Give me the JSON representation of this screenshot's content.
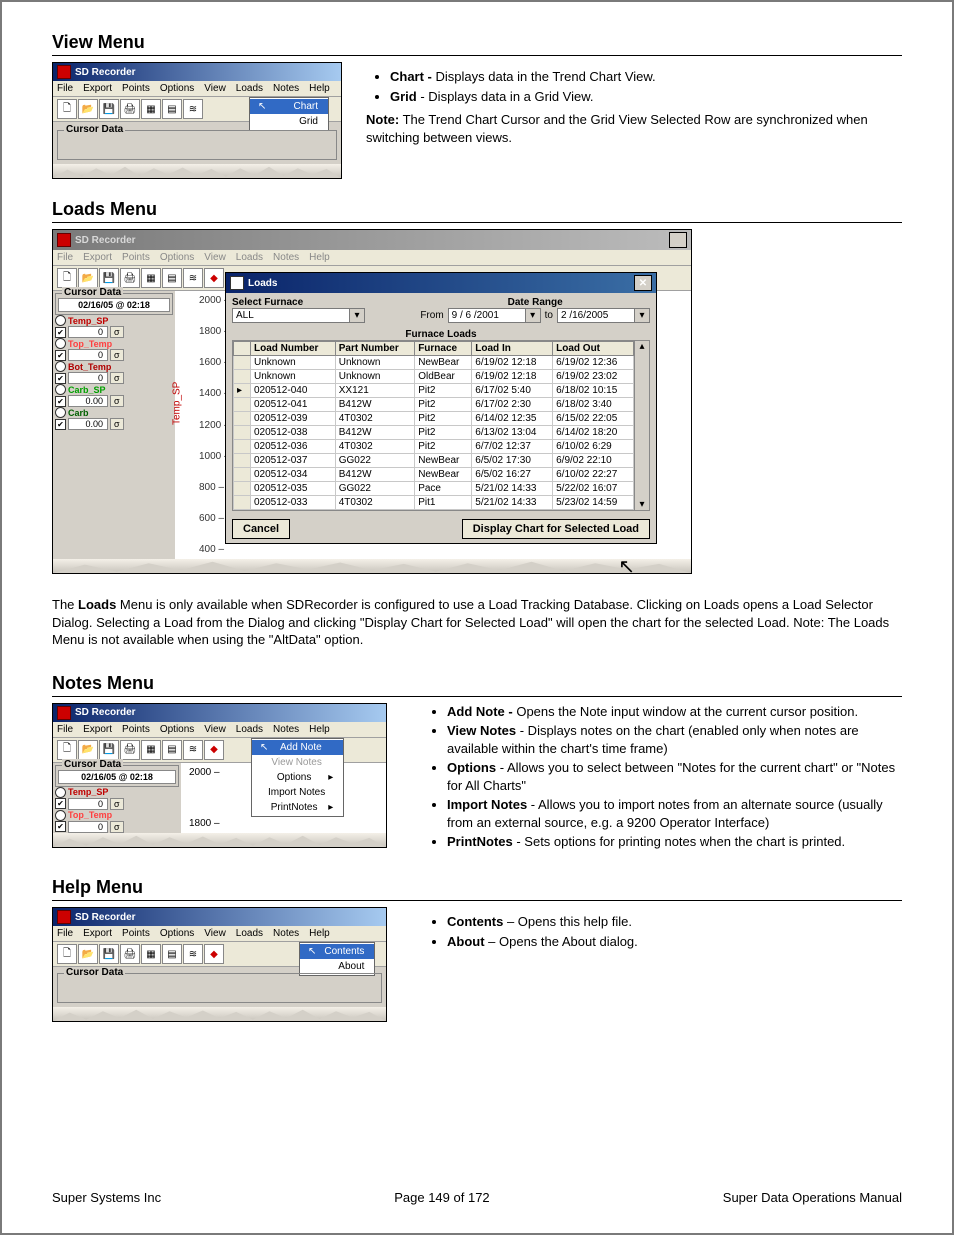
{
  "app": {
    "title": "SD Recorder"
  },
  "menus": [
    "File",
    "Export",
    "Points",
    "Options",
    "View",
    "Loads",
    "Notes",
    "Help"
  ],
  "cursor_data": {
    "label": "Cursor Data",
    "timestamp": "02/16/05 @ 02:18"
  },
  "side_channels": [
    {
      "name": "Temp_SP",
      "color": "#c00000",
      "value": "0",
      "checked": true
    },
    {
      "name": "Top_Temp",
      "color": "#ff4040",
      "value": "0",
      "checked": true
    },
    {
      "name": "Bot_Temp",
      "color": "#b00000",
      "value": "0",
      "checked": true
    },
    {
      "name": "Carb_SP",
      "color": "#00a000",
      "value": "0.00",
      "checked": true
    },
    {
      "name": "Carb",
      "color": "#006000",
      "value": "0.00",
      "checked": true
    }
  ],
  "yticks_view": [
    "2000",
    "1800"
  ],
  "yticks_loads": [
    "2000",
    "1800",
    "1600",
    "1400",
    "1200",
    "1000",
    "800",
    "600",
    "400"
  ],
  "yticks_notes": [
    "2000",
    "1800"
  ],
  "y_axis_label": "Temp_SP",
  "sections": {
    "view": {
      "title": "View Menu"
    },
    "loads": {
      "title": "Loads Menu"
    },
    "notes": {
      "title": "Notes Menu"
    },
    "help": {
      "title": "Help Menu"
    }
  },
  "view_menu_items": [
    "Chart",
    "Grid"
  ],
  "view_bullets": [
    {
      "term": "Chart - ",
      "text": "Displays data in the Trend Chart View."
    },
    {
      "term": "Grid",
      "text": " - Displays data in a Grid View."
    }
  ],
  "view_note": {
    "label": "Note:",
    "text": "  The Trend Chart Cursor and the Grid View Selected Row are synchronized when switching between views."
  },
  "loads_dialog": {
    "title": "Loads",
    "select_furnace_label": "Select Furnace",
    "furnace_value": "ALL",
    "date_range_label": "Date Range",
    "from_label": "From",
    "to_label": "to",
    "from_value": "9 / 6 /2001",
    "to_value": "2 /16/2005",
    "table_title": "Furnace Loads",
    "columns": [
      "Load Number",
      "Part Number",
      "Furnace",
      "Load In",
      "Load Out"
    ],
    "rows": [
      [
        "Unknown",
        "Unknown",
        "NewBear",
        "6/19/02 12:18",
        "6/19/02 12:36"
      ],
      [
        "Unknown",
        "Unknown",
        "OldBear",
        "6/19/02 12:18",
        "6/19/02 23:02"
      ],
      [
        "020512-040",
        "XX121",
        "Pit2",
        "6/17/02 5:40",
        "6/18/02 10:15"
      ],
      [
        "020512-041",
        "B412W",
        "Pit2",
        "6/17/02 2:30",
        "6/18/02 3:40"
      ],
      [
        "020512-039",
        "4T0302",
        "Pit2",
        "6/14/02 12:35",
        "6/15/02 22:05"
      ],
      [
        "020512-038",
        "B412W",
        "Pit2",
        "6/13/02 13:04",
        "6/14/02 18:20"
      ],
      [
        "020512-036",
        "4T0302",
        "Pit2",
        "6/7/02 12:37",
        "6/10/02 6:29"
      ],
      [
        "020512-037",
        "GG022",
        "NewBear",
        "6/5/02 17:30",
        "6/9/02 22:10"
      ],
      [
        "020512-034",
        "B412W",
        "NewBear",
        "6/5/02 16:27",
        "6/10/02 22:27"
      ],
      [
        "020512-035",
        "GG022",
        "Pace",
        "5/21/02 14:33",
        "5/22/02 16:07"
      ],
      [
        "020512-033",
        "4T0302",
        "Pit1",
        "5/21/02 14:33",
        "5/23/02 14:59"
      ]
    ],
    "cancel": "Cancel",
    "display": "Display Chart for Selected Load"
  },
  "loads_para": "The Loads Menu is only available when SDRecorder is configured to use a Load Tracking Database.  Clicking on Loads opens a Load Selector Dialog.  Selecting a Load from the Dialog and clicking \"Display Chart for Selected Load\" will open the chart for the selected Load.  Note: The Loads Menu is not available when using the \"AltData\" option.",
  "loads_para_prefix": "The ",
  "loads_para_bold": "Loads",
  "notes_menu_items": [
    {
      "label": "Add Note",
      "hl": true,
      "caret": false
    },
    {
      "label": "View Notes",
      "hl": false,
      "caret": false,
      "disabled": true
    },
    {
      "label": "Options",
      "hl": false,
      "caret": true
    },
    {
      "label": "Import Notes",
      "hl": false,
      "caret": false
    },
    {
      "label": "PrintNotes",
      "hl": false,
      "caret": true
    }
  ],
  "notes_bullets": [
    {
      "term": "Add Note - ",
      "text": "Opens the Note input window at the current cursor position."
    },
    {
      "term": "View Notes",
      "text": " - Displays notes on the chart (enabled only when notes are available within the chart's time frame)"
    },
    {
      "term": "Options",
      "text": " - Allows you to select between \"Notes for the current chart\" or \"Notes for All Charts\""
    },
    {
      "term": "Import Notes",
      "text": " - Allows you to import notes from an alternate source (usually from an external source, e.g. a 9200 Operator Interface)"
    },
    {
      "term": "PrintNotes",
      "text": " - Sets options for printing notes when the chart is printed."
    }
  ],
  "help_menu_items": [
    {
      "label": "Contents",
      "hl": true
    },
    {
      "label": "About",
      "hl": false
    }
  ],
  "help_bullets": [
    {
      "term": "Contents",
      "text": " – Opens this help file."
    },
    {
      "term": "About",
      "text": " – Opens the About dialog."
    }
  ],
  "footer": {
    "left": "Super Systems Inc",
    "center": "Page 149 of 172",
    "right": "Super Data Operations Manual"
  },
  "sigma": "σ"
}
